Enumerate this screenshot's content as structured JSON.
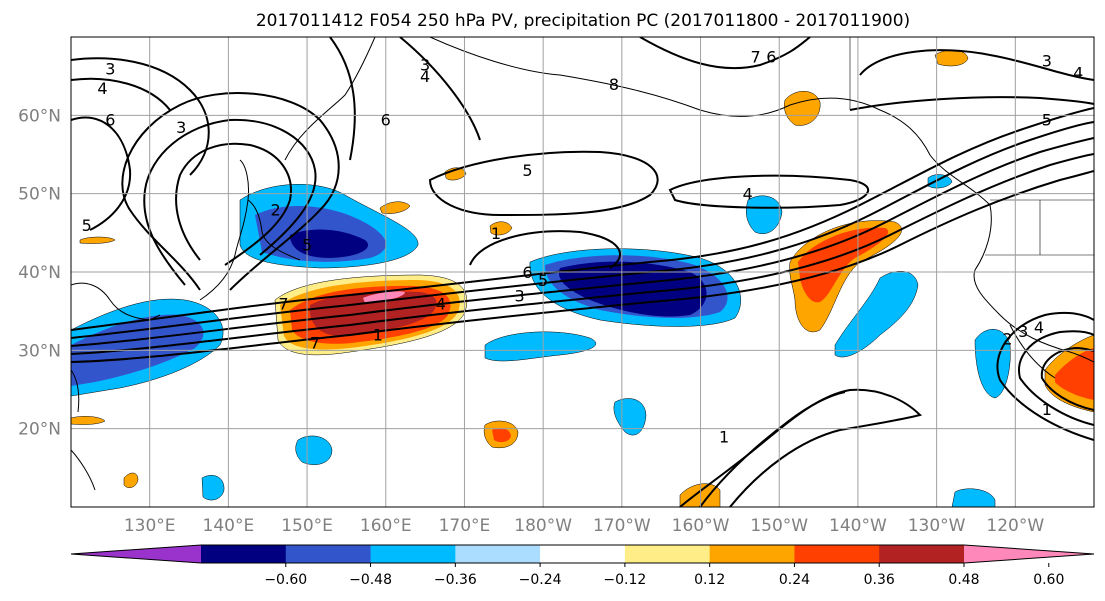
{
  "title": "2017011412 F054 250 hPa PV, precipitation PC (2017011800 - 2017011900)",
  "map": {
    "lat_range": [
      10,
      70
    ],
    "lon_range_east": [
      120,
      250
    ],
    "lat_ticks": [
      {
        "lat": 20,
        "label": "20°N"
      },
      {
        "lat": 30,
        "label": "30°N"
      },
      {
        "lat": 40,
        "label": "40°N"
      },
      {
        "lat": 50,
        "label": "50°N"
      },
      {
        "lat": 60,
        "label": "60°N"
      }
    ],
    "lon_ticks": [
      {
        "lon": 130,
        "label": "130°E"
      },
      {
        "lon": 140,
        "label": "140°E"
      },
      {
        "lon": 150,
        "label": "150°E"
      },
      {
        "lon": 160,
        "label": "160°E"
      },
      {
        "lon": 170,
        "label": "170°E"
      },
      {
        "lon": 180,
        "label": "180°W"
      },
      {
        "lon": 190,
        "label": "170°W"
      },
      {
        "lon": 200,
        "label": "160°W"
      },
      {
        "lon": 210,
        "label": "150°W"
      },
      {
        "lon": 220,
        "label": "140°W"
      },
      {
        "lon": 230,
        "label": "130°W"
      },
      {
        "lon": 240,
        "label": "120°W"
      }
    ],
    "grid": true,
    "pv_contour_labels": [
      {
        "text": "3",
        "lon": 125,
        "lat": 66
      },
      {
        "text": "4",
        "lon": 124,
        "lat": 63.5
      },
      {
        "text": "6",
        "lon": 125,
        "lat": 59.5
      },
      {
        "text": "3",
        "lon": 134,
        "lat": 58.5
      },
      {
        "text": "2",
        "lon": 146,
        "lat": 48
      },
      {
        "text": "5",
        "lon": 122,
        "lat": 46
      },
      {
        "text": "5",
        "lon": 150,
        "lat": 43.5
      },
      {
        "text": "3",
        "lon": 165,
        "lat": 66.5
      },
      {
        "text": "4",
        "lon": 165,
        "lat": 65
      },
      {
        "text": "6",
        "lon": 160,
        "lat": 59.5
      },
      {
        "text": "8",
        "lon": 189,
        "lat": 64
      },
      {
        "text": "5",
        "lon": 178,
        "lat": 53
      },
      {
        "text": "7",
        "lon": 207,
        "lat": 67.5
      },
      {
        "text": "6",
        "lon": 209,
        "lat": 67.5
      },
      {
        "text": "4",
        "lon": 206,
        "lat": 50
      },
      {
        "text": "1",
        "lon": 174,
        "lat": 45
      },
      {
        "text": "6",
        "lon": 178,
        "lat": 40
      },
      {
        "text": "5",
        "lon": 180,
        "lat": 39
      },
      {
        "text": "3",
        "lon": 177,
        "lat": 37
      },
      {
        "text": "4",
        "lon": 167,
        "lat": 36
      },
      {
        "text": "1",
        "lon": 159,
        "lat": 32
      },
      {
        "text": "7",
        "lon": 147,
        "lat": 36
      },
      {
        "text": "7",
        "lon": 151,
        "lat": 31
      },
      {
        "text": "3",
        "lon": 244,
        "lat": 67
      },
      {
        "text": "4",
        "lon": 248,
        "lat": 65.5
      },
      {
        "text": "5",
        "lon": 244,
        "lat": 59.5
      },
      {
        "text": "1",
        "lon": 203,
        "lat": 19
      },
      {
        "text": "2",
        "lon": 239,
        "lat": 31.5
      },
      {
        "text": "3",
        "lon": 241,
        "lat": 32.5
      },
      {
        "text": "4",
        "lon": 243,
        "lat": 33
      },
      {
        "text": "1",
        "lon": 244,
        "lat": 22.5
      }
    ]
  },
  "colorbar": {
    "ticks": [
      "−0.60",
      "−0.48",
      "−0.36",
      "−0.24",
      "−0.12",
      "0.12",
      "0.24",
      "0.36",
      "0.48",
      "0.60"
    ],
    "colors": [
      "#9933cc",
      "#000080",
      "#3355cc",
      "#00bbff",
      "#aaddff",
      "#ffffff",
      "#ffee88",
      "#ffa500",
      "#ff4000",
      "#b22222",
      "#ff88bb"
    ]
  }
}
